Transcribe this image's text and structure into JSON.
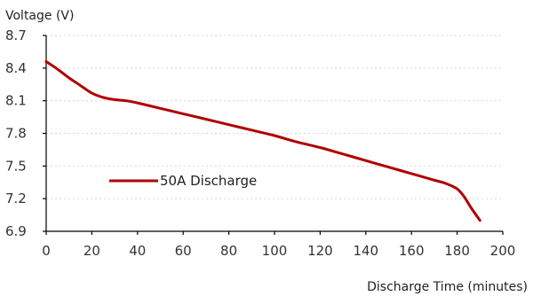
{
  "chart_data": {
    "type": "line",
    "title": "",
    "xlabel": "Discharge Time (minutes)",
    "ylabel": "Voltage (V)",
    "xlim": [
      0,
      200
    ],
    "ylim": [
      6.9,
      8.7
    ],
    "x_ticks": [
      0,
      20,
      40,
      60,
      80,
      100,
      120,
      140,
      160,
      180,
      200
    ],
    "y_ticks": [
      "8.7",
      "8.4",
      "8.1",
      "7.8",
      "7.5",
      "7.2",
      "6.9"
    ],
    "grid": "horizontal dotted",
    "legend_position": "inside-left",
    "series": [
      {
        "name": "50A Discharge",
        "color": "#b00000",
        "x": [
          0,
          5,
          10,
          15,
          20,
          25,
          30,
          35,
          40,
          50,
          60,
          70,
          80,
          90,
          100,
          110,
          120,
          130,
          140,
          150,
          160,
          170,
          175,
          180,
          183,
          186,
          190
        ],
        "y": [
          8.46,
          8.39,
          8.31,
          8.24,
          8.17,
          8.13,
          8.11,
          8.1,
          8.08,
          8.03,
          7.98,
          7.93,
          7.88,
          7.83,
          7.78,
          7.72,
          7.67,
          7.61,
          7.55,
          7.49,
          7.43,
          7.37,
          7.34,
          7.29,
          7.22,
          7.12,
          7.0
        ]
      }
    ]
  }
}
